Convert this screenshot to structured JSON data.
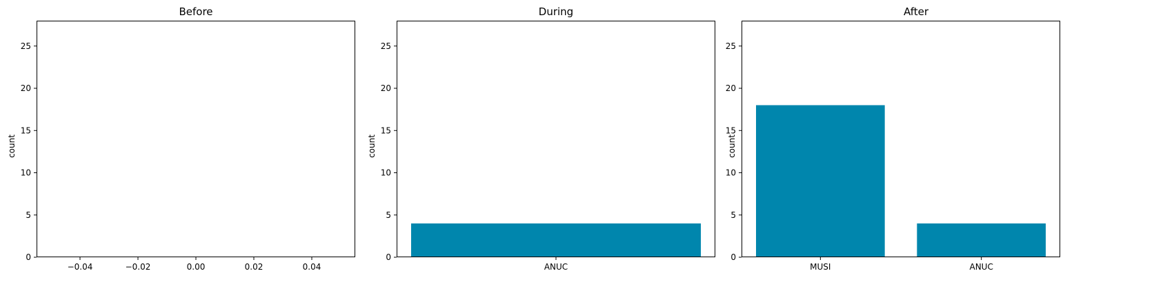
{
  "chart_data": [
    {
      "type": "bar",
      "title": "Before",
      "ylabel": "count",
      "xlabel": "",
      "categories": [],
      "values": [],
      "xlim": [
        -0.055,
        0.055
      ],
      "xticks": [
        "−0.04",
        "−0.02",
        "0.00",
        "0.02",
        "0.04"
      ],
      "xtick_values": [
        -0.04,
        -0.02,
        0.0,
        0.02,
        0.04
      ],
      "ylim": [
        0,
        28
      ],
      "yticks": [
        0,
        5,
        10,
        15,
        20,
        25
      ],
      "bar_color": "#0086ad"
    },
    {
      "type": "bar",
      "title": "During",
      "ylabel": "count",
      "xlabel": "",
      "categories": [
        "ANUC"
      ],
      "values": [
        4
      ],
      "ylim": [
        0,
        28
      ],
      "yticks": [
        0,
        5,
        10,
        15,
        20,
        25
      ],
      "bar_color": "#0086ad"
    },
    {
      "type": "bar",
      "title": "After",
      "ylabel": "count",
      "xlabel": "",
      "categories": [
        "MUSI",
        "ANUC"
      ],
      "values": [
        18,
        4
      ],
      "ylim": [
        0,
        28
      ],
      "yticks": [
        0,
        5,
        10,
        15,
        20,
        25
      ],
      "bar_color": "#0086ad"
    }
  ]
}
